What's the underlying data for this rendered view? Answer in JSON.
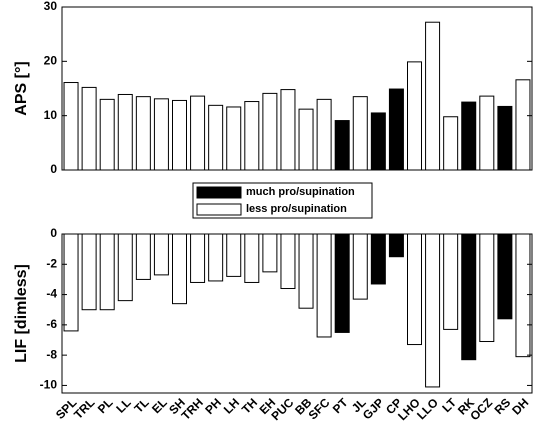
{
  "chart_data": [
    {
      "type": "bar",
      "ylabel": "APS [°]",
      "ylim": [
        0,
        30
      ],
      "yticks": [
        0,
        10,
        20,
        30
      ],
      "values": [
        16.1,
        15.2,
        13.0,
        13.9,
        13.5,
        13.1,
        12.8,
        13.6,
        11.9,
        11.6,
        12.6,
        14.1,
        14.8,
        11.2,
        13.0,
        9.1,
        13.5,
        10.5,
        14.9,
        19.9,
        27.2,
        9.8,
        12.5,
        13.6,
        11.7,
        16.6
      ],
      "colors": [
        "#ffffff",
        "#ffffff",
        "#ffffff",
        "#ffffff",
        "#ffffff",
        "#ffffff",
        "#ffffff",
        "#ffffff",
        "#ffffff",
        "#ffffff",
        "#ffffff",
        "#ffffff",
        "#ffffff",
        "#ffffff",
        "#ffffff",
        "#000000",
        "#ffffff",
        "#000000",
        "#000000",
        "#ffffff",
        "#ffffff",
        "#ffffff",
        "#000000",
        "#ffffff",
        "#000000",
        "#ffffff"
      ],
      "legend": [
        {
          "name": "much pro/supination",
          "color": "#000000"
        },
        {
          "name": "less pro/supination",
          "color": "#ffffff"
        }
      ]
    },
    {
      "type": "bar",
      "ylabel": "LIF [dimless]",
      "ylim": [
        -10.5,
        0
      ],
      "yticks": [
        -10,
        -8,
        -6,
        -4,
        -2,
        0
      ],
      "categories": [
        "SPL",
        "TRL",
        "PL",
        "LL",
        "TL",
        "EL",
        "SH",
        "TRH",
        "PH",
        "LH",
        "TH",
        "EH",
        "PUC",
        "BB",
        "SFC",
        "PT",
        "JL",
        "GJP",
        "CP",
        "LHO",
        "LLO",
        "LT",
        "RK",
        "OCZ",
        "RS",
        "DH"
      ],
      "values": [
        -6.4,
        -5.0,
        -5.0,
        -4.4,
        -3.0,
        -2.7,
        -4.6,
        -3.2,
        -3.1,
        -2.8,
        -3.2,
        -2.5,
        -3.6,
        -4.9,
        -6.8,
        -6.5,
        -4.3,
        -3.3,
        -1.5,
        -7.3,
        -10.1,
        -6.3,
        -8.3,
        -7.1,
        -5.6,
        -8.1
      ],
      "colors": [
        "#ffffff",
        "#ffffff",
        "#ffffff",
        "#ffffff",
        "#ffffff",
        "#ffffff",
        "#ffffff",
        "#ffffff",
        "#ffffff",
        "#ffffff",
        "#ffffff",
        "#ffffff",
        "#ffffff",
        "#ffffff",
        "#ffffff",
        "#000000",
        "#ffffff",
        "#000000",
        "#000000",
        "#ffffff",
        "#ffffff",
        "#ffffff",
        "#000000",
        "#ffffff",
        "#000000",
        "#ffffff"
      ]
    }
  ]
}
